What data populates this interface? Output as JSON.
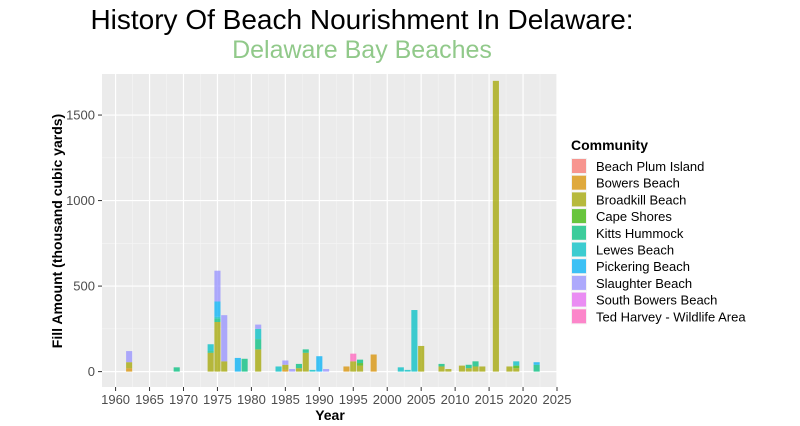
{
  "chart_data": {
    "type": "bar",
    "stacked": true,
    "title": "History Of Beach Nourishment In Delaware:",
    "subtitle": "Delaware Bay Beaches",
    "xlabel": "Year",
    "ylabel": "Fill Amount (thousand cubic yards)",
    "xlim": [
      1958,
      2025
    ],
    "ylim": [
      -90,
      1740
    ],
    "x_ticks": [
      1960,
      1965,
      1970,
      1975,
      1980,
      1985,
      1990,
      1995,
      2000,
      2005,
      2010,
      2015,
      2020,
      2025
    ],
    "y_ticks": [
      0,
      500,
      1000,
      1500
    ],
    "grid": true,
    "legend_title": "Community",
    "legend_position": "right",
    "series": [
      {
        "name": "Beach Plum Island",
        "color": "#F8766D",
        "points": []
      },
      {
        "name": "Bowers Beach",
        "color": "#D89000",
        "points": [
          [
            1962,
            20
          ],
          [
            1985,
            10
          ],
          [
            1994,
            30
          ],
          [
            1998,
            100
          ]
        ]
      },
      {
        "name": "Broadkill Beach",
        "color": "#A3A500",
        "points": [
          [
            1962,
            35
          ],
          [
            1974,
            110
          ],
          [
            1975,
            290
          ],
          [
            1976,
            60
          ],
          [
            1981,
            130
          ],
          [
            1985,
            30
          ],
          [
            1987,
            20
          ],
          [
            1988,
            110
          ],
          [
            1995,
            60
          ],
          [
            1996,
            35
          ],
          [
            2005,
            150
          ],
          [
            2008,
            30
          ],
          [
            2009,
            15
          ],
          [
            2011,
            35
          ],
          [
            2012,
            20
          ],
          [
            2013,
            30
          ],
          [
            2014,
            30
          ],
          [
            2016,
            1700
          ],
          [
            2018,
            30
          ],
          [
            2019,
            20
          ]
        ]
      },
      {
        "name": "Cape Shores",
        "color": "#39B600",
        "points": [
          [
            1996,
            15
          ],
          [
            2019,
            15
          ]
        ]
      },
      {
        "name": "Kitts Hummock",
        "color": "#00BF7D",
        "points": [
          [
            1969,
            25
          ],
          [
            1974,
            10
          ],
          [
            1975,
            20
          ],
          [
            1979,
            75
          ],
          [
            1981,
            60
          ],
          [
            1987,
            25
          ],
          [
            1988,
            20
          ],
          [
            1996,
            20
          ],
          [
            2008,
            15
          ],
          [
            2012,
            20
          ],
          [
            2013,
            30
          ],
          [
            2022,
            40
          ]
        ]
      },
      {
        "name": "Lewes Beach",
        "color": "#00BFC4",
        "points": [
          [
            1974,
            40
          ],
          [
            1975,
            10
          ],
          [
            1981,
            60
          ],
          [
            1984,
            30
          ],
          [
            1989,
            10
          ],
          [
            2002,
            25
          ],
          [
            2003,
            10
          ],
          [
            2004,
            360
          ],
          [
            2019,
            25
          ]
        ]
      },
      {
        "name": "Pickering Beach",
        "color": "#00B0F6",
        "points": [
          [
            1975,
            90
          ],
          [
            1978,
            80
          ],
          [
            1990,
            90
          ],
          [
            2022,
            15
          ]
        ]
      },
      {
        "name": "Slaughter Beach",
        "color": "#9590FF",
        "points": [
          [
            1962,
            65
          ],
          [
            1975,
            180
          ],
          [
            1976,
            270
          ],
          [
            1981,
            25
          ],
          [
            1985,
            25
          ],
          [
            1986,
            15
          ],
          [
            1991,
            15
          ]
        ]
      },
      {
        "name": "South Bowers Beach",
        "color": "#E76BF3",
        "points": []
      },
      {
        "name": "Ted Harvey - Wildlife Area",
        "color": "#FF62BC",
        "points": [
          [
            1995,
            45
          ]
        ]
      }
    ]
  }
}
